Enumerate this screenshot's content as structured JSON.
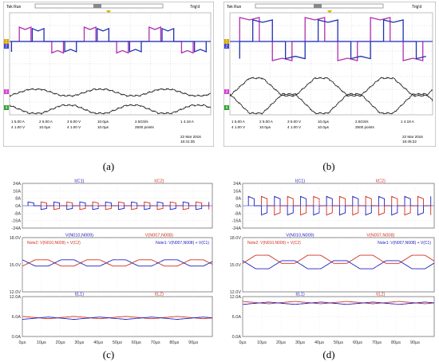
{
  "captions": {
    "a": "(a)",
    "b": "(b)",
    "c": "(c)",
    "d": "(d)"
  },
  "scope_a": {
    "header": {
      "left": "Tek Run",
      "right": "Trig'd"
    },
    "channels": [
      "1",
      "2",
      "3",
      "4"
    ],
    "status": [
      [
        "1  5.00 A",
        "2  5.00 A",
        "3  5.00 V",
        "10.0µs",
        "2.5GS/s",
        "1  4.18 A"
      ],
      [
        "4  1.00 V",
        "10.0µs",
        "4  1.00 V",
        "10.0µs",
        "2500 points",
        ""
      ]
    ],
    "date": "22 Mar 2016",
    "time": "16:41:35"
  },
  "scope_b": {
    "header": {
      "left": "Tek Run",
      "right": "Trig'd"
    },
    "channels": [
      "1",
      "2",
      "3",
      "4"
    ],
    "status": [
      [
        "1  5.00 A",
        "2  5.00 A",
        "3  5.00 V",
        "10.0µs",
        "2.5GS/s",
        "1  4.18 A"
      ],
      [
        "4  1.00 V",
        "10.0µs",
        "4  1.00 V",
        "10.0µs",
        "2500 points",
        ""
      ]
    ],
    "date": "22 Mar 2016",
    "time": "16:45:22"
  },
  "chart_data": [
    {
      "type": "line",
      "panel": "c",
      "subplots": [
        {
          "legend": [
            "I(C1)",
            "I(C2)"
          ],
          "y_ticks": [
            "24A",
            "16A",
            "8A",
            "0A",
            "-8A",
            "-16A",
            "-24A"
          ],
          "ylim": [
            -24,
            24
          ]
        },
        {
          "legend": [
            "V(N010,N009)",
            "V(N007,N008)"
          ],
          "annotations": [
            "Note2: V(N010,N009) + V(C2)",
            "Note1: V(N007,N008) + V(C1)"
          ],
          "y_ticks": [
            "18.0V",
            "15.0V",
            "12.0V"
          ],
          "ylim": [
            12,
            18
          ],
          "series_levels": [
            15.2,
            15.2
          ]
        },
        {
          "legend": [
            "I(L1)",
            "I(L2)"
          ],
          "y_ticks": [
            "12.0A",
            "6.0A",
            "0.0A"
          ],
          "ylim": [
            0,
            12
          ],
          "series_levels": [
            5.7,
            5.5
          ]
        }
      ],
      "x_ticks": [
        "0µs",
        "10µs",
        "20µs",
        "30µs",
        "40µs",
        "50µs",
        "60µs",
        "70µs",
        "80µs",
        "90µs"
      ],
      "xlim": [
        0,
        100
      ],
      "colors": {
        "series1": "#d03020",
        "series2": "#2020c0"
      }
    },
    {
      "type": "line",
      "panel": "d",
      "subplots": [
        {
          "legend": [
            "I(C1)",
            "I(C2)"
          ],
          "y_ticks": [
            "24A",
            "16A",
            "8A",
            "0A",
            "-8A",
            "-16A",
            "-24A"
          ],
          "ylim": [
            -24,
            24
          ]
        },
        {
          "legend": [
            "V(N010,N009)",
            "V(N007,N008)"
          ],
          "annotations": [
            "Note2: V(N010,N009) + V(C2)",
            "Note1: V(N007,N008) + V(C1)"
          ],
          "y_ticks": [
            "18.0V",
            "15.0V",
            "12.0V"
          ],
          "ylim": [
            12,
            18
          ],
          "series_levels": [
            15.6,
            15.0
          ]
        },
        {
          "legend": [
            "I(L1)",
            "I(L2)"
          ],
          "y_ticks": [
            "12.0A",
            "6.0A",
            "0.0A"
          ],
          "ylim": [
            0,
            12
          ],
          "series_levels": [
            10.2,
            10.0
          ]
        }
      ],
      "x_ticks": [
        "0µs",
        "10µs",
        "20µs",
        "30µs",
        "40µs",
        "50µs",
        "60µs",
        "70µs",
        "80µs",
        "90µs"
      ],
      "xlim": [
        0,
        100
      ],
      "colors": {
        "series1": "#d03020",
        "series2": "#2020c0"
      }
    }
  ]
}
